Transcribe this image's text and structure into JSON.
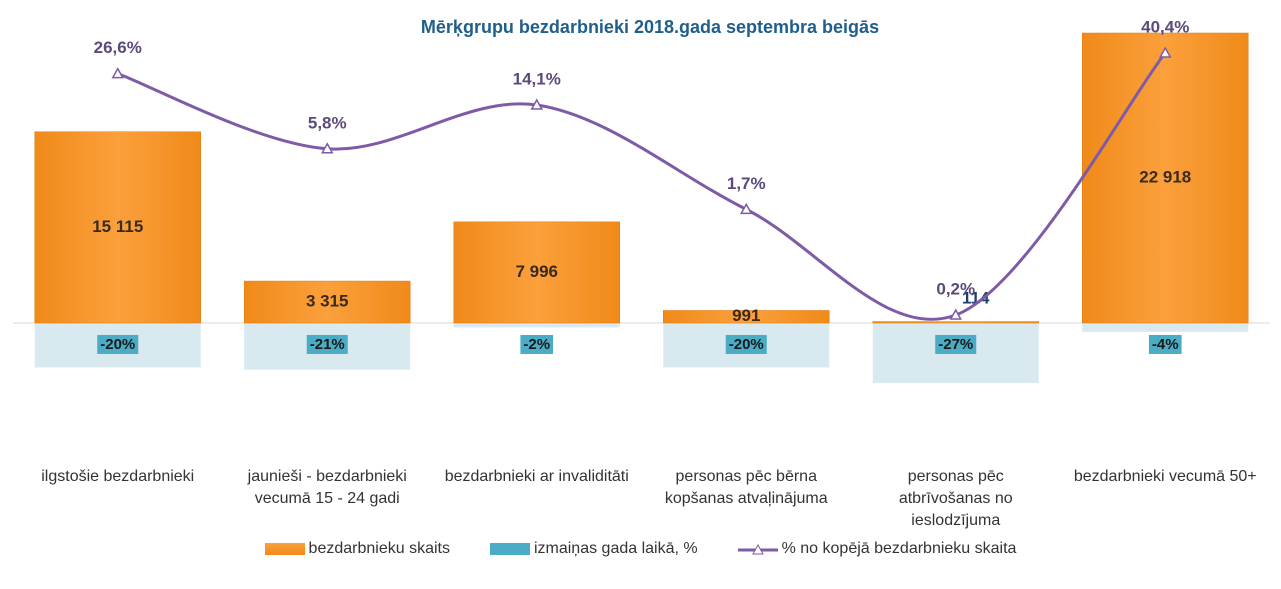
{
  "chart_data": {
    "type": "combo",
    "title": "Mērķgrupu bezdarbnieki 2018.gada septembra beigās",
    "categories": [
      "ilgstošie bezdarbnieki",
      "jaunieši - bezdarbnieki vecumā 15 - 24 gadi",
      "bezdarbnieki ar invaliditāti",
      "personas pēc bērna kopšanas atvaļinājuma",
      "personas pēc atbrīvošanas no ieslodzījuma",
      "bezdarbnieki vecumā 50+"
    ],
    "series": [
      {
        "name": "bezdarbnieku skaits",
        "type": "bar",
        "color": "#f7941d",
        "values": [
          15115,
          3315,
          7996,
          991,
          114,
          22918
        ],
        "value_labels": [
          "15 115",
          "3 315",
          "7 996",
          "991",
          "114",
          "22 918"
        ]
      },
      {
        "name": "izmaiņas gada laikā, %",
        "type": "bar",
        "color": "#4bacc6",
        "values": [
          -20,
          -21,
          -2,
          -20,
          -27,
          -4
        ],
        "value_labels": [
          "-20%",
          "-21%",
          "-2%",
          "-20%",
          "-27%",
          "-4%"
        ]
      },
      {
        "name": "% no kopējā bezdarbnieku skaita",
        "type": "line",
        "axis": "y2",
        "y2log": true,
        "color": "#7e5ba6",
        "values": [
          26.6,
          5.8,
          14.1,
          1.7,
          0.2,
          40.4
        ],
        "value_labels": [
          "26,6%",
          "5,8%",
          "14,1%",
          "1,7%",
          "0,2%",
          "40,4%"
        ]
      }
    ]
  }
}
